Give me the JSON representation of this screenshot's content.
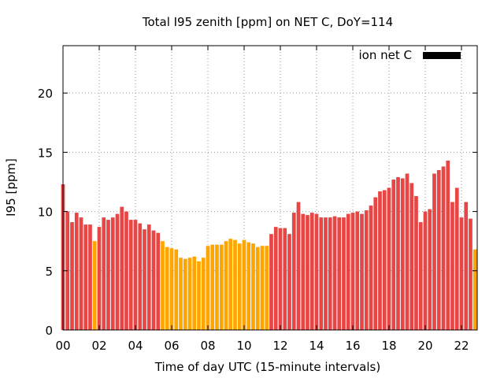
{
  "chart_data": {
    "type": "bar",
    "title": "Total I95 zenith [ppm] on NET C, DoY=114",
    "xlabel": "Time of day UTC (15-minute intervals)",
    "ylabel": "I95 [ppm]",
    "ylim": [
      0,
      24
    ],
    "xlim": [
      0,
      22.75
    ],
    "yticks": [
      0,
      5,
      10,
      15,
      20
    ],
    "xticks": [
      0,
      2,
      4,
      6,
      8,
      10,
      12,
      14,
      16,
      18,
      20,
      22
    ],
    "xtick_labels": [
      "00",
      "02",
      "04",
      "06",
      "08",
      "10",
      "12",
      "14",
      "16",
      "18",
      "20",
      "22"
    ],
    "grid": true,
    "legend": {
      "label": "ion net C",
      "position": "top-right"
    },
    "colors": {
      "red": "#e84545",
      "orange": "#ffa500",
      "legend": "#000000"
    },
    "bin_hours": 0.25,
    "x": [
      0.0,
      0.25,
      0.5,
      0.75,
      1.0,
      1.25,
      1.5,
      1.75,
      2.0,
      2.25,
      2.5,
      2.75,
      3.0,
      3.25,
      3.5,
      3.75,
      4.0,
      4.25,
      4.5,
      4.75,
      5.0,
      5.25,
      5.5,
      5.75,
      6.0,
      6.25,
      6.5,
      6.75,
      7.0,
      7.25,
      7.5,
      7.75,
      8.0,
      8.25,
      8.5,
      8.75,
      9.0,
      9.25,
      9.5,
      9.75,
      10.0,
      10.25,
      10.5,
      10.75,
      11.0,
      11.25,
      11.5,
      11.75,
      12.0,
      12.25,
      12.5,
      12.75,
      13.0,
      13.25,
      13.5,
      13.75,
      14.0,
      14.25,
      14.5,
      14.75,
      15.0,
      15.25,
      15.5,
      15.75,
      16.0,
      16.25,
      16.5,
      16.75,
      17.0,
      17.25,
      17.5,
      17.75,
      18.0,
      18.25,
      18.5,
      18.75,
      19.0,
      19.25,
      19.5,
      19.75,
      20.0,
      20.25,
      20.5,
      20.75,
      21.0,
      21.25,
      21.5,
      21.75,
      22.0,
      22.25,
      22.5,
      22.75
    ],
    "values": [
      12.3,
      10.0,
      9.1,
      9.9,
      9.5,
      8.9,
      8.9,
      7.5,
      8.7,
      9.5,
      9.3,
      9.5,
      9.8,
      10.4,
      10.0,
      9.3,
      9.3,
      9.0,
      8.5,
      8.9,
      8.4,
      8.2,
      7.5,
      7.0,
      6.9,
      6.8,
      6.1,
      6.0,
      6.1,
      6.2,
      5.8,
      6.1,
      7.1,
      7.2,
      7.2,
      7.2,
      7.5,
      7.7,
      7.6,
      7.3,
      7.6,
      7.4,
      7.3,
      7.0,
      7.1,
      7.1,
      8.1,
      8.7,
      8.6,
      8.6,
      8.1,
      9.9,
      10.8,
      9.8,
      9.7,
      9.9,
      9.8,
      9.5,
      9.5,
      9.5,
      9.6,
      9.5,
      9.5,
      9.8,
      9.9,
      10.0,
      9.8,
      10.1,
      10.5,
      11.2,
      11.7,
      11.8,
      12.0,
      12.7,
      12.9,
      12.8,
      13.2,
      12.4,
      11.3,
      9.1,
      10.0,
      10.2,
      13.2,
      13.5,
      13.8,
      14.3,
      10.8,
      12.0,
      9.5,
      10.8,
      9.4,
      6.8
    ],
    "series_color": [
      "red",
      "red",
      "red",
      "red",
      "red",
      "red",
      "red",
      "orange",
      "red",
      "red",
      "red",
      "red",
      "red",
      "red",
      "red",
      "red",
      "red",
      "red",
      "red",
      "red",
      "red",
      "red",
      "orange",
      "orange",
      "orange",
      "orange",
      "orange",
      "orange",
      "orange",
      "orange",
      "orange",
      "orange",
      "orange",
      "orange",
      "orange",
      "orange",
      "orange",
      "orange",
      "orange",
      "orange",
      "orange",
      "orange",
      "orange",
      "orange",
      "orange",
      "orange",
      "red",
      "red",
      "red",
      "red",
      "red",
      "red",
      "red",
      "red",
      "red",
      "red",
      "red",
      "red",
      "red",
      "red",
      "red",
      "red",
      "red",
      "red",
      "red",
      "red",
      "red",
      "red",
      "red",
      "red",
      "red",
      "red",
      "red",
      "red",
      "red",
      "red",
      "red",
      "red",
      "red",
      "red",
      "red",
      "red",
      "red",
      "red",
      "red",
      "red",
      "red",
      "red",
      "red",
      "red",
      "red",
      "orange"
    ]
  }
}
